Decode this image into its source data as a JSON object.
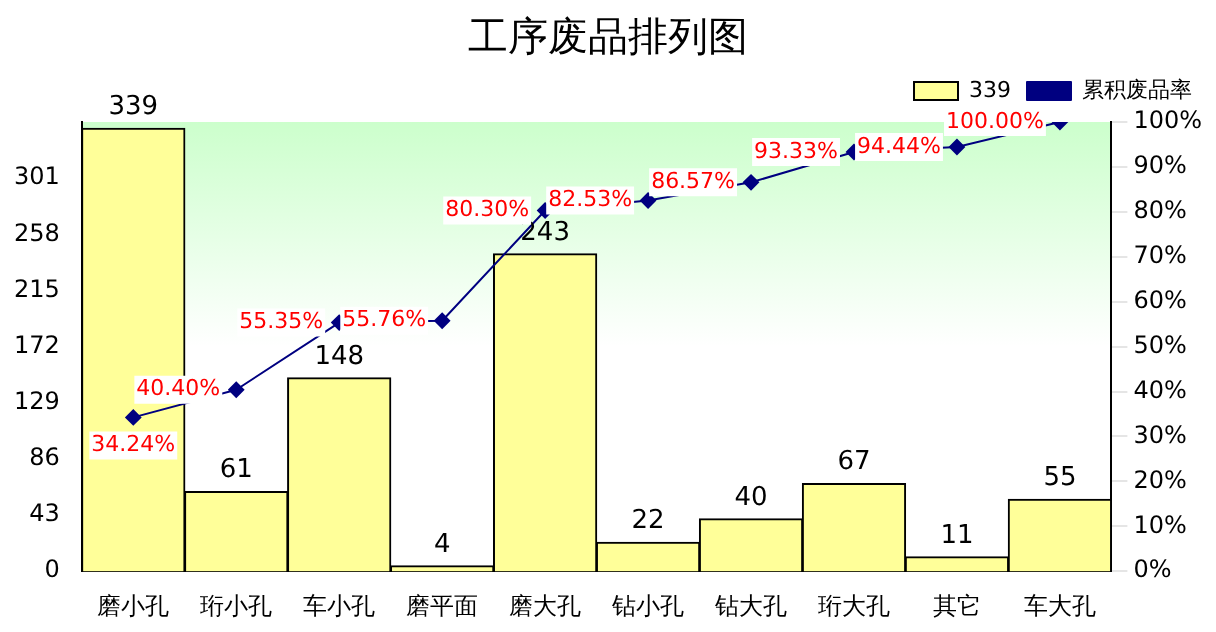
{
  "chart_data": {
    "type": "bar",
    "title": "工序废品排列图",
    "categories": [
      "磨小孔",
      "珩小孔",
      "车小孔",
      "磨平面",
      "磨大孔",
      "钻小孔",
      "钻大孔",
      "珩大孔",
      "其它",
      "车大孔"
    ],
    "series": [
      {
        "name": "339",
        "type": "bar",
        "color": "#ffff99",
        "values": [
          339,
          61,
          148,
          4,
          243,
          22,
          40,
          67,
          11,
          55
        ],
        "value_labels": [
          "339",
          "61",
          "148",
          "4",
          "243",
          "22",
          "40",
          "67",
          "11",
          "55"
        ]
      },
      {
        "name": "累积废品率",
        "type": "line",
        "axis": "y2",
        "color": "#000080",
        "marker": "diamond",
        "values": [
          34.24,
          40.4,
          55.35,
          55.76,
          80.3,
          82.53,
          86.57,
          93.33,
          94.44,
          100.0
        ],
        "value_labels": [
          "34.24%",
          "40.40%",
          "55.35%",
          "55.76%",
          "80.30%",
          "82.53%",
          "86.57%",
          "93.33%",
          "94.44%",
          "100.00%"
        ]
      }
    ],
    "ylim": [
      0,
      344
    ],
    "yticks": [
      0,
      43,
      86,
      129,
      172,
      215,
      258,
      301,
      {
        "value": 344,
        "label": null
      }
    ],
    "y2lim": [
      0,
      100
    ],
    "y2ticks": [
      {
        "value": 0,
        "label": "0%"
      },
      {
        "value": 10,
        "label": "10%"
      },
      {
        "value": 20,
        "label": "20%"
      },
      {
        "value": 30,
        "label": "30%"
      },
      {
        "value": 40,
        "label": "40%"
      },
      {
        "value": 50,
        "label": "50%"
      },
      {
        "value": 60,
        "label": "60%"
      },
      {
        "value": 70,
        "label": "70%"
      },
      {
        "value": 80,
        "label": "80%"
      },
      {
        "value": 90,
        "label": "90%"
      },
      {
        "value": 100,
        "label": "100%"
      }
    ],
    "legend": "top right",
    "grid": false
  }
}
